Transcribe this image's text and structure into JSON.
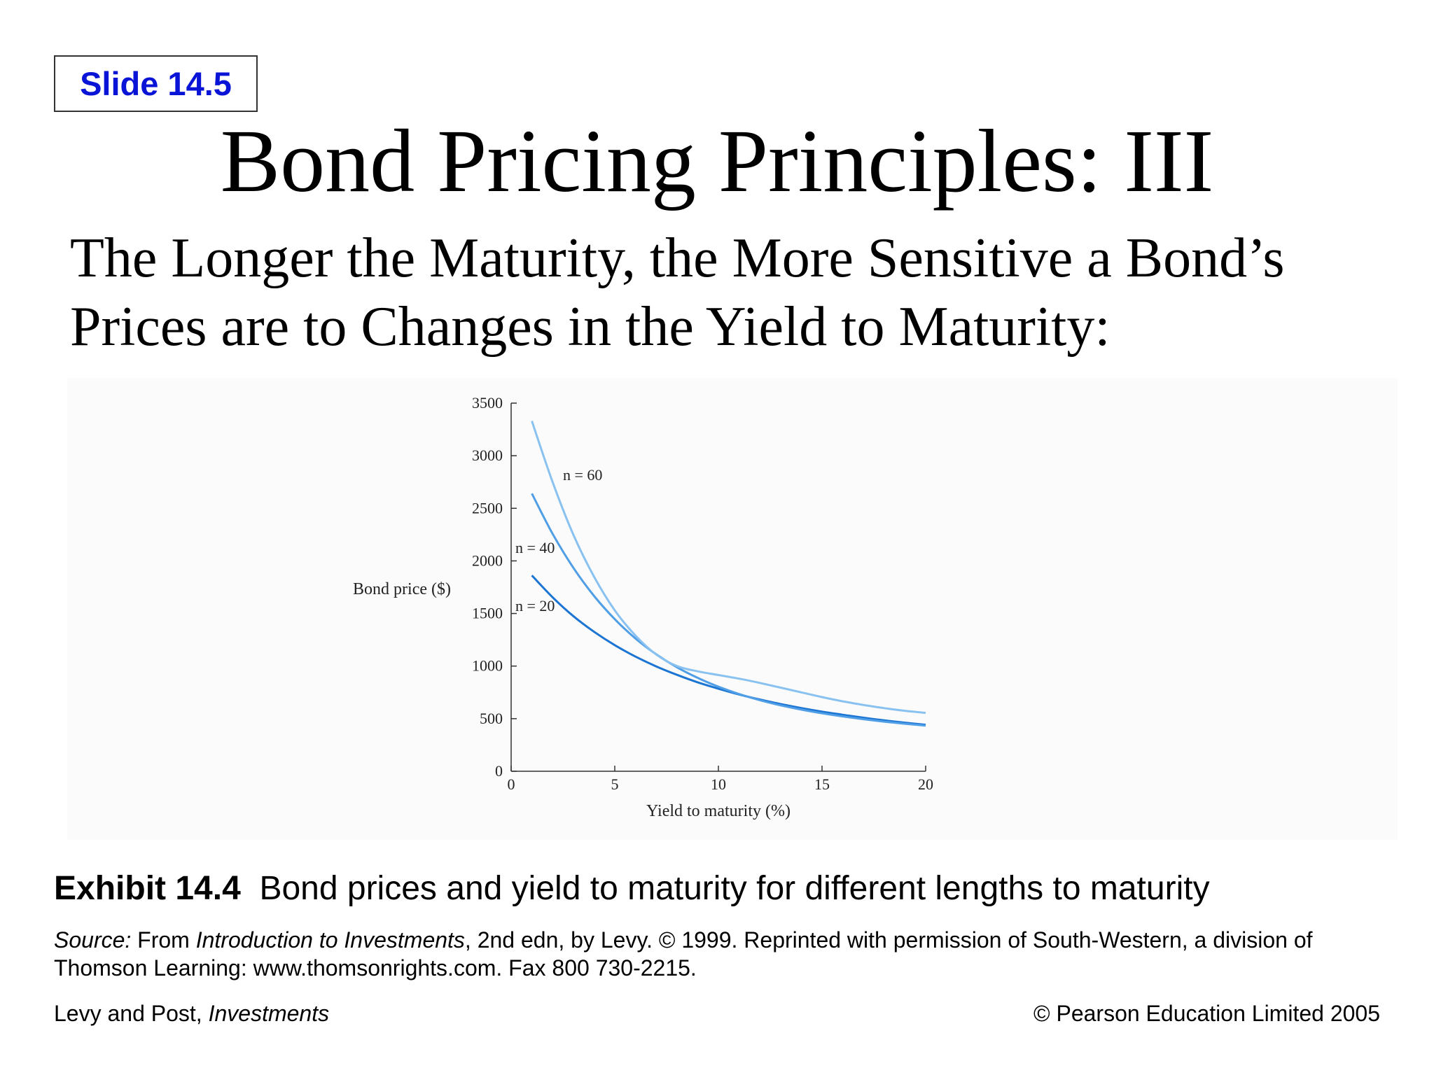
{
  "slide_label": "Slide 14.5",
  "title": "Bond Pricing Principles: III",
  "subtitle_line1": "The Longer the Maturity, the More Sensitive a Bond’s",
  "subtitle_line2": "Prices are to Changes in the Yield to Maturity:",
  "exhibit": {
    "label": "Exhibit 14.4",
    "caption": "Bond prices and yield to maturity for different lengths to maturity"
  },
  "source": {
    "label": "Source:",
    "text_before": " From ",
    "book": "Introduction to Investments",
    "text_after": ", 2nd edn, by Levy. © 1999. Reprinted with permission of South-Western, a division of Thomson Learning: www.thomsonrights.com. Fax 800 730-2215."
  },
  "footer": {
    "authors": "Levy and Post, ",
    "book": "Investments",
    "copyright": "© Pearson Education Limited 2005"
  },
  "chart_data": {
    "type": "line",
    "xlabel": "Yield to maturity (%)",
    "ylabel": "Bond price ($)",
    "xlim": [
      0,
      20
    ],
    "ylim": [
      0,
      3500
    ],
    "xticks": [
      0,
      5,
      10,
      15,
      20
    ],
    "yticks": [
      0,
      500,
      1000,
      1500,
      2000,
      2500,
      3000,
      3500
    ],
    "grid": false,
    "series": [
      {
        "name": "n = 20",
        "color": "#1c74d3",
        "x": [
          1,
          2,
          3,
          4,
          5,
          6,
          7,
          8,
          9,
          10,
          11,
          12,
          13,
          14,
          15,
          16,
          17,
          18,
          19,
          20
        ],
        "values": [
          1862,
          1654,
          1475,
          1326,
          1199,
          1090,
          997,
          917,
          846,
          785,
          730,
          682,
          639,
          601,
          567,
          537,
          509,
          484,
          462,
          442
        ]
      },
      {
        "name": "n = 40",
        "color": "#4f9ee6",
        "x": [
          1,
          2,
          3,
          4,
          5,
          6,
          7,
          8,
          9,
          10,
          11,
          12,
          13,
          14,
          15,
          16,
          17,
          18,
          19,
          20
        ],
        "values": [
          2640,
          2258,
          1935,
          1667,
          1446,
          1262,
          1112,
          989,
          888,
          804,
          734,
          676,
          627,
          586,
          551,
          521,
          495,
          472,
          452,
          434
        ]
      },
      {
        "name": "n = 60",
        "color": "#89c2f0",
        "x": [
          1,
          2,
          3,
          4,
          5,
          6,
          7,
          8,
          9,
          10,
          11,
          12,
          13,
          14,
          15,
          16,
          17,
          18,
          19,
          20
        ],
        "values": [
          3330,
          2750,
          2250,
          1850,
          1530,
          1290,
          1110,
          1000,
          950,
          915,
          880,
          840,
          795,
          750,
          705,
          665,
          630,
          600,
          575,
          555
        ]
      }
    ]
  }
}
